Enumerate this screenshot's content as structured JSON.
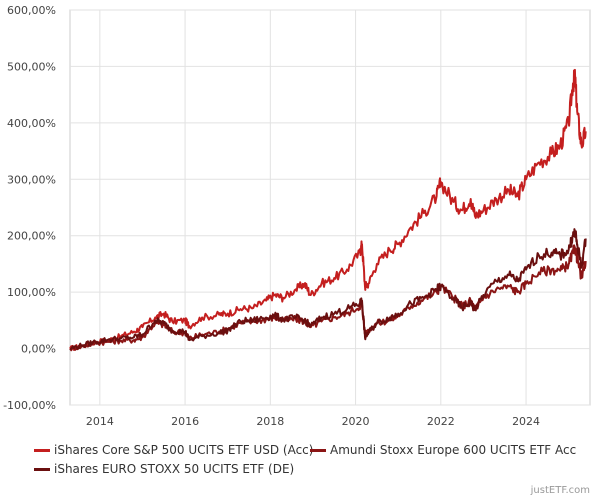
{
  "chart_data": {
    "type": "line",
    "title": "",
    "xlabel": "",
    "ylabel": "",
    "x_range": [
      2013.3,
      2025.5
    ],
    "ylim": [
      -100,
      600
    ],
    "y_ticks": [
      -100,
      0,
      100,
      200,
      300,
      400,
      500,
      600
    ],
    "y_tick_labels": [
      "-100,00%",
      "0,00%",
      "100,00%",
      "200,00%",
      "300,00%",
      "400,00%",
      "500,00%",
      "600,00%"
    ],
    "x_ticks": [
      2014,
      2016,
      2018,
      2020,
      2022,
      2024
    ],
    "x_tick_labels": [
      "2014",
      "2016",
      "2018",
      "2020",
      "2022",
      "2024"
    ],
    "grid": true,
    "legend_position": "bottom",
    "series": [
      {
        "name": "iShares Core S&P 500 UCITS ETF USD (Acc)",
        "color": "#c41f1f",
        "points": [
          [
            2013.3,
            0
          ],
          [
            2013.6,
            5
          ],
          [
            2013.9,
            12
          ],
          [
            2014.2,
            15
          ],
          [
            2014.5,
            22
          ],
          [
            2014.8,
            30
          ],
          [
            2015.0,
            38
          ],
          [
            2015.3,
            55
          ],
          [
            2015.5,
            62
          ],
          [
            2015.7,
            48
          ],
          [
            2016.0,
            50
          ],
          [
            2016.1,
            40
          ],
          [
            2016.4,
            55
          ],
          [
            2016.8,
            60
          ],
          [
            2017.0,
            62
          ],
          [
            2017.3,
            70
          ],
          [
            2017.6,
            72
          ],
          [
            2017.9,
            85
          ],
          [
            2018.1,
            95
          ],
          [
            2018.3,
            90
          ],
          [
            2018.6,
            105
          ],
          [
            2018.8,
            115
          ],
          [
            2018.95,
            95
          ],
          [
            2019.2,
            115
          ],
          [
            2019.5,
            125
          ],
          [
            2019.8,
            140
          ],
          [
            2020.1,
            170
          ],
          [
            2020.15,
            185
          ],
          [
            2020.22,
            110
          ],
          [
            2020.3,
            115
          ],
          [
            2020.5,
            150
          ],
          [
            2020.8,
            175
          ],
          [
            2021.0,
            185
          ],
          [
            2021.3,
            215
          ],
          [
            2021.6,
            240
          ],
          [
            2021.9,
            270
          ],
          [
            2022.0,
            295
          ],
          [
            2022.3,
            260
          ],
          [
            2022.5,
            245
          ],
          [
            2022.7,
            265
          ],
          [
            2022.8,
            235
          ],
          [
            2023.0,
            245
          ],
          [
            2023.3,
            265
          ],
          [
            2023.6,
            280
          ],
          [
            2023.8,
            270
          ],
          [
            2024.0,
            300
          ],
          [
            2024.3,
            330
          ],
          [
            2024.6,
            345
          ],
          [
            2024.8,
            360
          ],
          [
            2025.0,
            400
          ],
          [
            2025.1,
            470
          ],
          [
            2025.15,
            480
          ],
          [
            2025.2,
            420
          ],
          [
            2025.3,
            360
          ],
          [
            2025.4,
            385
          ]
        ]
      },
      {
        "name": "Amundi Stoxx Europe 600 UCITS ETF Acc",
        "color": "#8b1515",
        "points": [
          [
            2013.3,
            0
          ],
          [
            2013.6,
            4
          ],
          [
            2013.9,
            10
          ],
          [
            2014.2,
            12
          ],
          [
            2014.5,
            14
          ],
          [
            2014.8,
            15
          ],
          [
            2015.0,
            20
          ],
          [
            2015.3,
            45
          ],
          [
            2015.5,
            42
          ],
          [
            2015.7,
            30
          ],
          [
            2016.0,
            28
          ],
          [
            2016.1,
            18
          ],
          [
            2016.4,
            25
          ],
          [
            2016.8,
            30
          ],
          [
            2017.0,
            35
          ],
          [
            2017.3,
            45
          ],
          [
            2017.6,
            48
          ],
          [
            2017.9,
            52
          ],
          [
            2018.1,
            55
          ],
          [
            2018.3,
            50
          ],
          [
            2018.6,
            52
          ],
          [
            2018.8,
            48
          ],
          [
            2018.95,
            38
          ],
          [
            2019.2,
            48
          ],
          [
            2019.5,
            55
          ],
          [
            2019.8,
            62
          ],
          [
            2020.1,
            75
          ],
          [
            2020.15,
            78
          ],
          [
            2020.22,
            25
          ],
          [
            2020.3,
            32
          ],
          [
            2020.5,
            45
          ],
          [
            2020.8,
            50
          ],
          [
            2021.0,
            58
          ],
          [
            2021.3,
            75
          ],
          [
            2021.6,
            88
          ],
          [
            2021.9,
            100
          ],
          [
            2022.0,
            110
          ],
          [
            2022.3,
            90
          ],
          [
            2022.5,
            75
          ],
          [
            2022.7,
            85
          ],
          [
            2022.8,
            70
          ],
          [
            2023.0,
            90
          ],
          [
            2023.3,
            105
          ],
          [
            2023.6,
            110
          ],
          [
            2023.8,
            100
          ],
          [
            2024.0,
            115
          ],
          [
            2024.3,
            135
          ],
          [
            2024.6,
            140
          ],
          [
            2024.8,
            138
          ],
          [
            2025.0,
            150
          ],
          [
            2025.1,
            170
          ],
          [
            2025.15,
            178
          ],
          [
            2025.2,
            160
          ],
          [
            2025.3,
            125
          ],
          [
            2025.4,
            155
          ]
        ]
      },
      {
        "name": "iShares EURO STOXX 50 UCITS ETF (DE)",
        "color": "#6a0f0f",
        "points": [
          [
            2013.3,
            0
          ],
          [
            2013.6,
            6
          ],
          [
            2013.9,
            12
          ],
          [
            2014.2,
            16
          ],
          [
            2014.5,
            18
          ],
          [
            2014.8,
            20
          ],
          [
            2015.0,
            25
          ],
          [
            2015.3,
            50
          ],
          [
            2015.5,
            45
          ],
          [
            2015.7,
            32
          ],
          [
            2016.0,
            30
          ],
          [
            2016.1,
            15
          ],
          [
            2016.4,
            22
          ],
          [
            2016.8,
            28
          ],
          [
            2017.0,
            32
          ],
          [
            2017.3,
            48
          ],
          [
            2017.6,
            50
          ],
          [
            2017.9,
            55
          ],
          [
            2018.1,
            58
          ],
          [
            2018.3,
            52
          ],
          [
            2018.6,
            55
          ],
          [
            2018.8,
            50
          ],
          [
            2018.95,
            40
          ],
          [
            2019.2,
            55
          ],
          [
            2019.5,
            62
          ],
          [
            2019.8,
            70
          ],
          [
            2020.1,
            80
          ],
          [
            2020.15,
            85
          ],
          [
            2020.22,
            20
          ],
          [
            2020.3,
            28
          ],
          [
            2020.5,
            45
          ],
          [
            2020.8,
            55
          ],
          [
            2021.0,
            62
          ],
          [
            2021.3,
            80
          ],
          [
            2021.6,
            90
          ],
          [
            2021.9,
            105
          ],
          [
            2022.0,
            110
          ],
          [
            2022.3,
            88
          ],
          [
            2022.5,
            72
          ],
          [
            2022.7,
            82
          ],
          [
            2022.8,
            68
          ],
          [
            2023.0,
            95
          ],
          [
            2023.3,
            120
          ],
          [
            2023.6,
            130
          ],
          [
            2023.8,
            120
          ],
          [
            2024.0,
            140
          ],
          [
            2024.3,
            165
          ],
          [
            2024.6,
            170
          ],
          [
            2024.8,
            165
          ],
          [
            2025.0,
            175
          ],
          [
            2025.1,
            200
          ],
          [
            2025.15,
            205
          ],
          [
            2025.2,
            185
          ],
          [
            2025.3,
            145
          ],
          [
            2025.4,
            195
          ]
        ]
      }
    ],
    "credit": "justETF.com"
  }
}
